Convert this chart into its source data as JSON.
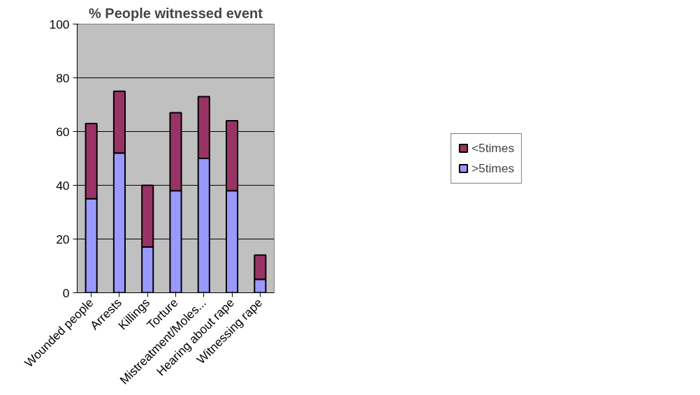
{
  "chart_data": {
    "type": "bar",
    "title": "% People witnessed event",
    "categories": [
      "Wounded people",
      "Arrests",
      "Killings",
      "Torture",
      "Mistreatment/Moles...",
      "Hearing about rape",
      "Witnessing rape"
    ],
    "stacked": true,
    "series": [
      {
        "name": ">5times",
        "color": "#9999ff",
        "values": [
          35,
          52,
          17,
          38,
          50,
          38,
          5
        ]
      },
      {
        "name": "<5times",
        "color": "#993366",
        "values": [
          28,
          23,
          23,
          29,
          23,
          26,
          9
        ]
      }
    ],
    "ylim": [
      0,
      100
    ],
    "yticks": [
      0,
      20,
      40,
      60,
      80,
      100
    ],
    "grid": "y",
    "legend": "right"
  }
}
